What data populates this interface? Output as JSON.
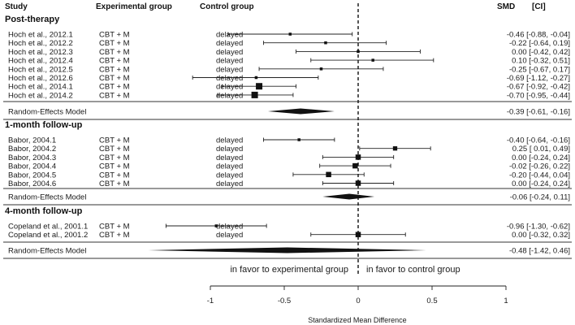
{
  "chart_data": {
    "type": "forest",
    "headers": {
      "study": "Study",
      "experimental": "Experimental group",
      "control": "Control group",
      "smd": "SMD",
      "ci": "[CI]"
    },
    "xlabel": "Standardized Mean Difference",
    "xlim": [
      -1.5,
      1.0
    ],
    "xticks": [
      -1,
      -0.5,
      0,
      0.5,
      1
    ],
    "xtick_labels": [
      "-1",
      "-0.5",
      "0",
      "0.5",
      "1"
    ],
    "annotations": {
      "left": "in favor to experimental group",
      "right": "in favor to control group"
    },
    "sections": [
      {
        "title": "Post-therapy",
        "studies": [
          {
            "study": "Hoch et al., 2012.1",
            "exp": "CBT + M",
            "ctrl": "delayed",
            "smd": -0.46,
            "lo": -0.88,
            "hi": -0.04,
            "ci_text": "-0.46 [-0.88, -0.04]",
            "weight": 0.25
          },
          {
            "study": "Hoch et al., 2012.2",
            "exp": "CBT + M",
            "ctrl": "delayed",
            "smd": -0.22,
            "lo": -0.64,
            "hi": 0.19,
            "ci_text": "-0.22 [-0.64,  0.19]",
            "weight": 0.25
          },
          {
            "study": "Hoch et al., 2012.3",
            "exp": "CBT + M",
            "ctrl": "delayed",
            "smd": 0.0,
            "lo": -0.42,
            "hi": 0.42,
            "ci_text": "0.00 [-0.42,  0.42]",
            "weight": 0.25
          },
          {
            "study": "Hoch et al., 2012.4",
            "exp": "CBT + M",
            "ctrl": "delayed",
            "smd": 0.1,
            "lo": -0.32,
            "hi": 0.51,
            "ci_text": "0.10 [-0.32,  0.51]",
            "weight": 0.25
          },
          {
            "study": "Hoch et al., 2012.5",
            "exp": "CBT + M",
            "ctrl": "delayed",
            "smd": -0.25,
            "lo": -0.67,
            "hi": 0.17,
            "ci_text": "-0.25 [-0.67,  0.17]",
            "weight": 0.25
          },
          {
            "study": "Hoch et al., 2012.6",
            "exp": "CBT + M",
            "ctrl": "delayed",
            "smd": -0.69,
            "lo": -1.12,
            "hi": -0.27,
            "ci_text": "-0.69 [-1.12, -0.27]",
            "weight": 0.25
          },
          {
            "study": "Hoch et al., 2014.1",
            "exp": "CBT + M",
            "ctrl": "delayed",
            "smd": -0.67,
            "lo": -0.92,
            "hi": -0.42,
            "ci_text": "-0.67 [-0.92, -0.42]",
            "weight": 1.0
          },
          {
            "study": "Hoch et al., 2014.2",
            "exp": "CBT + M",
            "ctrl": "delayed",
            "smd": -0.7,
            "lo": -0.95,
            "hi": -0.44,
            "ci_text": "-0.70 [-0.95, -0.44]",
            "weight": 1.0
          }
        ],
        "summary": {
          "label": "Random-Effects Model",
          "smd": -0.39,
          "lo": -0.61,
          "hi": -0.16,
          "ci_text": "-0.39 [-0.61, -0.16]"
        }
      },
      {
        "title": "1-month follow-up",
        "studies": [
          {
            "study": "Babor, 2004.1",
            "exp": "CBT + M",
            "ctrl": "delayed",
            "smd": -0.4,
            "lo": -0.64,
            "hi": -0.16,
            "ci_text": "-0.40 [-0.64, -0.16]",
            "weight": 0.25
          },
          {
            "study": "Babor, 2004.2",
            "exp": "CBT + M",
            "ctrl": "delayed",
            "smd": 0.25,
            "lo": 0.01,
            "hi": 0.49,
            "ci_text": "0.25 [ 0.01,  0.49]",
            "weight": 0.55
          },
          {
            "study": "Babor, 2004.3",
            "exp": "CBT + M",
            "ctrl": "delayed",
            "smd": 0.0,
            "lo": -0.24,
            "hi": 0.24,
            "ci_text": "0.00 [-0.24,  0.24]",
            "weight": 0.75
          },
          {
            "study": "Babor, 2004.4",
            "exp": "CBT + M",
            "ctrl": "delayed",
            "smd": -0.02,
            "lo": -0.26,
            "hi": 0.22,
            "ci_text": "-0.02 [-0.26,  0.22]",
            "weight": 0.75
          },
          {
            "study": "Babor, 2004.5",
            "exp": "CBT + M",
            "ctrl": "delayed",
            "smd": -0.2,
            "lo": -0.44,
            "hi": 0.04,
            "ci_text": "-0.20 [-0.44,  0.04]",
            "weight": 0.75
          },
          {
            "study": "Babor, 2004.6",
            "exp": "CBT + M",
            "ctrl": "delayed",
            "smd": 0.0,
            "lo": -0.24,
            "hi": 0.24,
            "ci_text": "0.00 [-0.24,  0.24]",
            "weight": 0.75
          }
        ],
        "summary": {
          "label": "Random-Effects Model",
          "smd": -0.06,
          "lo": -0.24,
          "hi": 0.11,
          "ci_text": "-0.06 [-0.24,  0.11]"
        }
      },
      {
        "title": "4-month follow-up",
        "studies": [
          {
            "study": "Copeland et al., 2001.1",
            "exp": "CBT + M",
            "ctrl": "delayed",
            "smd": -0.96,
            "lo": -1.3,
            "hi": -0.62,
            "ci_text": "-0.96 [-1.30, -0.62]",
            "weight": 0.25
          },
          {
            "study": "Copeland et al., 2001.2",
            "exp": "CBT + M",
            "ctrl": "delayed",
            "smd": 0.0,
            "lo": -0.32,
            "hi": 0.32,
            "ci_text": "0.00 [-0.32,  0.32]",
            "weight": 0.75
          }
        ],
        "summary": {
          "label": "Random-Effects Model",
          "smd": -0.48,
          "lo": -1.42,
          "hi": 0.46,
          "ci_text": "-0.48 [-1.42,  0.46]"
        }
      }
    ]
  }
}
